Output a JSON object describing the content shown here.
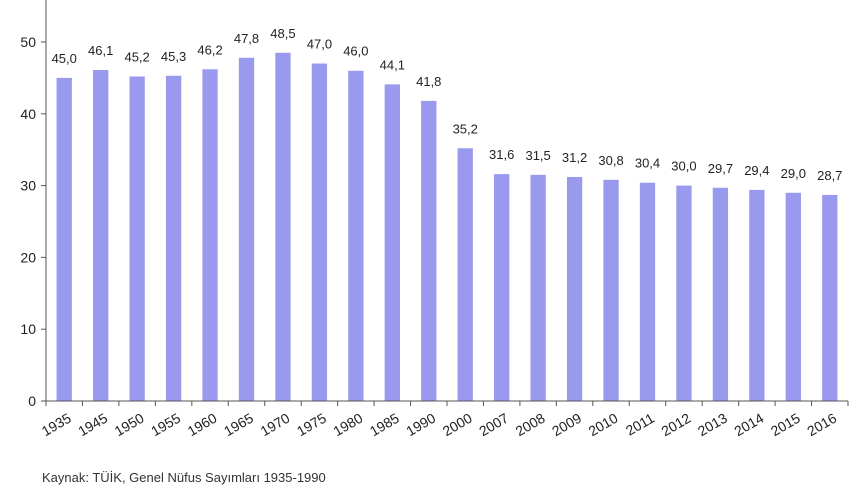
{
  "chart_data": {
    "type": "bar",
    "title": "",
    "xlabel": "",
    "ylabel": "",
    "ylim": [
      0,
      50
    ],
    "yticks": [
      "0",
      "10",
      "20",
      "30",
      "40",
      "50"
    ],
    "grid": false,
    "bar_color": "#9999ee",
    "categories": [
      "1935",
      "1945",
      "1950",
      "1955",
      "1960",
      "1965",
      "1970",
      "1975",
      "1980",
      "1985",
      "1990",
      "2000",
      "2007",
      "2008",
      "2009",
      "2010",
      "2011",
      "2012",
      "2013",
      "2014",
      "2015",
      "2016"
    ],
    "values": [
      45.0,
      46.1,
      45.2,
      45.3,
      46.2,
      47.8,
      48.5,
      47.0,
      46.0,
      44.1,
      41.8,
      35.2,
      31.6,
      31.5,
      31.2,
      30.8,
      30.4,
      30.0,
      29.7,
      29.4,
      29.0,
      28.7
    ],
    "data_labels": [
      "45,0",
      "46,1",
      "45,2",
      "45,3",
      "46,2",
      "47,8",
      "48,5",
      "47,0",
      "46,0",
      "44,1",
      "41,8",
      "35,2",
      "31,6",
      "31,5",
      "31,2",
      "30,8",
      "30,4",
      "30,0",
      "29,7",
      "29,4",
      "29,0",
      "28,7"
    ]
  },
  "footer": {
    "source_text": "Kaynak: TÜİK, Genel Nüfus Sayımları 1935-1990"
  }
}
